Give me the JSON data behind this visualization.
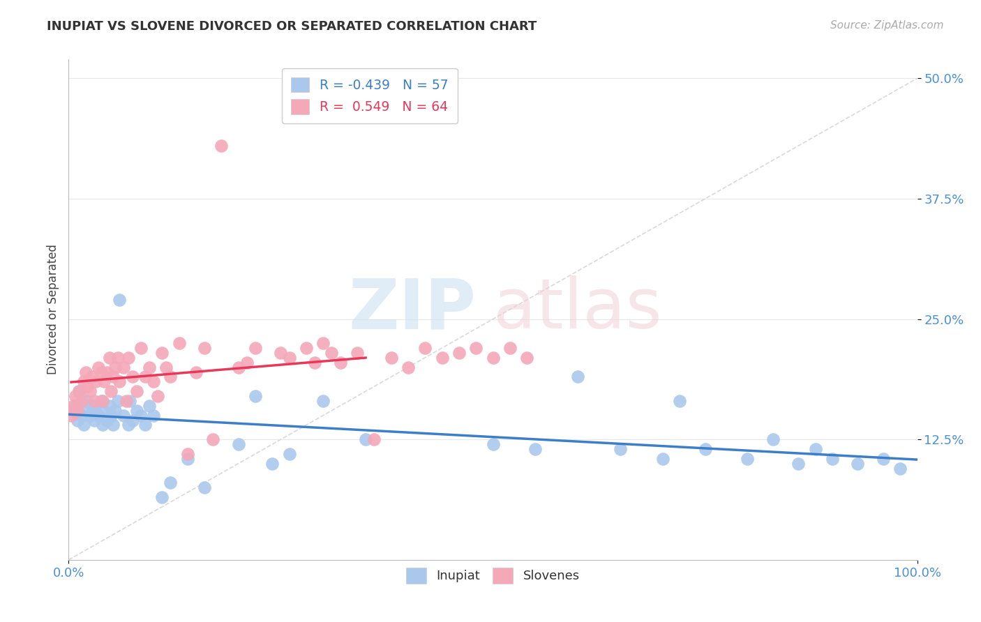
{
  "title": "INUPIAT VS SLOVENE DIVORCED OR SEPARATED CORRELATION CHART",
  "source": "Source: ZipAtlas.com",
  "ylabel": "Divorced or Separated",
  "xlim": [
    0.0,
    1.0
  ],
  "ylim": [
    0.0,
    0.52
  ],
  "ytick_labels": [
    "12.5%",
    "25.0%",
    "37.5%",
    "50.0%"
  ],
  "ytick_positions": [
    0.125,
    0.25,
    0.375,
    0.5
  ],
  "xtick_labels": [
    "0.0%",
    "100.0%"
  ],
  "xtick_positions": [
    0.0,
    1.0
  ],
  "background_color": "#ffffff",
  "grid_color": "#e8e8e8",
  "diagonal_color": "#d0d0d0",
  "inupiat_color": "#aac8ec",
  "slovene_color": "#f4a8b8",
  "inupiat_line_color": "#3d7ec8",
  "slovene_line_color": "#e8385a",
  "legend_inupiat_r": "-0.439",
  "legend_inupiat_n": "57",
  "legend_slovene_r": "0.549",
  "legend_slovene_n": "64",
  "inupiat_scatter_x": [
    0.005,
    0.008,
    0.01,
    0.012,
    0.015,
    0.018,
    0.02,
    0.022,
    0.025,
    0.028,
    0.03,
    0.032,
    0.035,
    0.038,
    0.04,
    0.042,
    0.045,
    0.048,
    0.05,
    0.052,
    0.055,
    0.058,
    0.06,
    0.065,
    0.07,
    0.072,
    0.075,
    0.08,
    0.085,
    0.09,
    0.095,
    0.1,
    0.11,
    0.12,
    0.14,
    0.16,
    0.2,
    0.22,
    0.24,
    0.26,
    0.3,
    0.35,
    0.5,
    0.55,
    0.6,
    0.65,
    0.7,
    0.72,
    0.75,
    0.8,
    0.83,
    0.86,
    0.88,
    0.9,
    0.93,
    0.96,
    0.98
  ],
  "inupiat_scatter_y": [
    0.155,
    0.16,
    0.145,
    0.175,
    0.15,
    0.14,
    0.165,
    0.155,
    0.15,
    0.16,
    0.145,
    0.155,
    0.15,
    0.165,
    0.14,
    0.155,
    0.145,
    0.16,
    0.15,
    0.14,
    0.155,
    0.165,
    0.27,
    0.15,
    0.14,
    0.165,
    0.145,
    0.155,
    0.15,
    0.14,
    0.16,
    0.15,
    0.065,
    0.08,
    0.105,
    0.075,
    0.12,
    0.17,
    0.1,
    0.11,
    0.165,
    0.125,
    0.12,
    0.115,
    0.19,
    0.115,
    0.105,
    0.165,
    0.115,
    0.105,
    0.125,
    0.1,
    0.115,
    0.105,
    0.1,
    0.105,
    0.095
  ],
  "slovene_scatter_x": [
    0.003,
    0.005,
    0.008,
    0.01,
    0.012,
    0.015,
    0.018,
    0.02,
    0.022,
    0.025,
    0.028,
    0.03,
    0.032,
    0.035,
    0.038,
    0.04,
    0.042,
    0.045,
    0.048,
    0.05,
    0.052,
    0.055,
    0.058,
    0.06,
    0.065,
    0.068,
    0.07,
    0.075,
    0.08,
    0.085,
    0.09,
    0.095,
    0.1,
    0.105,
    0.11,
    0.115,
    0.12,
    0.13,
    0.14,
    0.15,
    0.16,
    0.17,
    0.18,
    0.2,
    0.21,
    0.22,
    0.25,
    0.26,
    0.28,
    0.29,
    0.3,
    0.31,
    0.32,
    0.34,
    0.36,
    0.38,
    0.4,
    0.42,
    0.44,
    0.46,
    0.48,
    0.5,
    0.52,
    0.54
  ],
  "slovene_scatter_y": [
    0.15,
    0.16,
    0.17,
    0.155,
    0.175,
    0.165,
    0.185,
    0.195,
    0.18,
    0.175,
    0.19,
    0.165,
    0.185,
    0.2,
    0.195,
    0.165,
    0.185,
    0.195,
    0.21,
    0.175,
    0.19,
    0.2,
    0.21,
    0.185,
    0.2,
    0.165,
    0.21,
    0.19,
    0.175,
    0.22,
    0.19,
    0.2,
    0.185,
    0.17,
    0.215,
    0.2,
    0.19,
    0.225,
    0.11,
    0.195,
    0.22,
    0.125,
    0.43,
    0.2,
    0.205,
    0.22,
    0.215,
    0.21,
    0.22,
    0.205,
    0.225,
    0.215,
    0.205,
    0.215,
    0.125,
    0.21,
    0.2,
    0.22,
    0.21,
    0.215,
    0.22,
    0.21,
    0.22,
    0.21
  ]
}
